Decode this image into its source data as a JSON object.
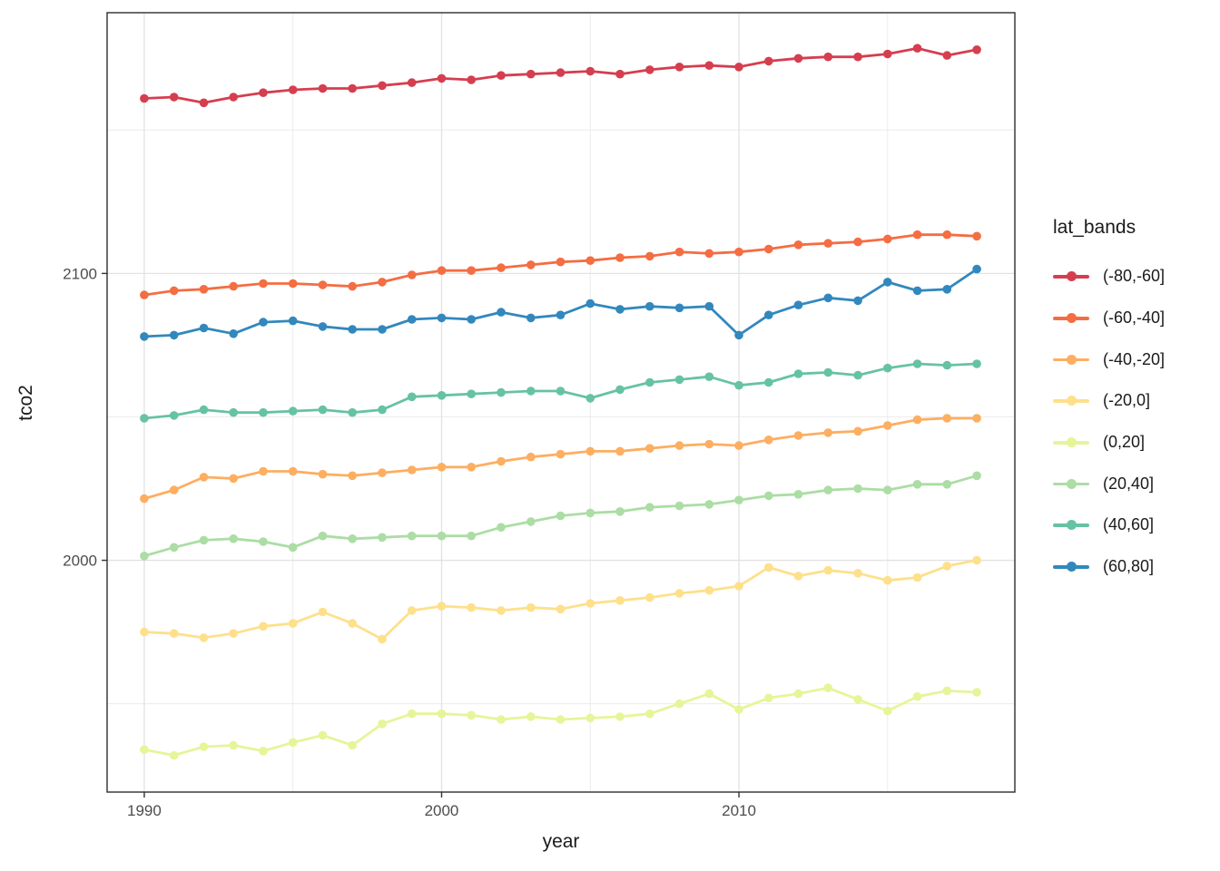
{
  "figure": {
    "background": "#ffffff",
    "panel_background": "#ffffff"
  },
  "colors": {
    "panel_border": "#2e2e2e",
    "grid_major": "#e2e2e2",
    "grid_minor": "#ececec",
    "tick_mark": "#333333",
    "tick_label": "#4d4d4d",
    "title_text": "#1a1a1a"
  },
  "chart_data": {
    "type": "line",
    "title": "",
    "xlabel": "year",
    "ylabel": "tco2",
    "legend_title": "lat_bands",
    "legend_position": "right",
    "grid": "major and minor gridlines, white panel, black border (ggplot theme_bw)",
    "xlim": [
      1988.75,
      2019.28
    ],
    "ylim": [
      1919.2,
      2190.9
    ],
    "x_ticks_major": [
      1990,
      2000,
      2010
    ],
    "x_ticks_minor": [
      1995,
      2005,
      2015
    ],
    "y_ticks_major": [
      2000,
      2100
    ],
    "y_ticks_minor": [
      1950,
      2050,
      2150
    ],
    "x_tick_labels": [
      "1990",
      "2000",
      "2010"
    ],
    "y_tick_labels": [
      "2000",
      "2100"
    ],
    "x": [
      1990,
      1991,
      1992,
      1993,
      1994,
      1995,
      1996,
      1997,
      1998,
      1999,
      2000,
      2001,
      2002,
      2003,
      2004,
      2005,
      2006,
      2007,
      2008,
      2009,
      2010,
      2011,
      2012,
      2013,
      2014,
      2015,
      2016,
      2017,
      2018
    ],
    "series": [
      {
        "name": "(-80,-60]",
        "color": "#D53E4F",
        "values": [
          2161,
          2161.5,
          2159.5,
          2161.5,
          2163,
          2164,
          2164.5,
          2164.5,
          2165.5,
          2166.5,
          2168,
          2167.5,
          2169,
          2169.5,
          2170,
          2170.5,
          2169.5,
          2171,
          2172,
          2172.5,
          2172,
          2174,
          2175,
          2175.5,
          2175.5,
          2176.5,
          2178.5,
          2176,
          2178
        ]
      },
      {
        "name": "(-60,-40]",
        "color": "#F46D43",
        "values": [
          2092.5,
          2094,
          2094.5,
          2095.5,
          2096.5,
          2096.5,
          2096,
          2095.5,
          2097,
          2099.5,
          2101,
          2101,
          2102,
          2103,
          2104,
          2104.5,
          2105.5,
          2106,
          2107.5,
          2107,
          2107.5,
          2108.5,
          2110,
          2110.5,
          2111,
          2112,
          2113.5,
          2113.5,
          2113
        ]
      },
      {
        "name": "(-40,-20]",
        "color": "#FDAE61",
        "values": [
          2021.5,
          2024.5,
          2029,
          2028.5,
          2031,
          2031,
          2030,
          2029.5,
          2030.5,
          2031.5,
          2032.5,
          2032.5,
          2034.5,
          2036,
          2037,
          2038,
          2038,
          2039,
          2040,
          2040.5,
          2040,
          2042,
          2043.5,
          2044.5,
          2045,
          2047,
          2049,
          2049.5,
          2049.5
        ]
      },
      {
        "name": "(-20,0]",
        "color": "#FEE08B",
        "values": [
          1975,
          1974.5,
          1973,
          1974.5,
          1977,
          1978,
          1982,
          1978,
          1972.5,
          1982.5,
          1984,
          1983.5,
          1982.5,
          1983.5,
          1983,
          1985,
          1986,
          1987,
          1988.5,
          1989.5,
          1991,
          1997.5,
          1994.5,
          1996.5,
          1995.5,
          1993,
          1994,
          1998,
          2000
        ]
      },
      {
        "name": "(0,20]",
        "color": "#E6F598",
        "values": [
          1934,
          1932,
          1935,
          1935.5,
          1933.5,
          1936.5,
          1939,
          1935.5,
          1943,
          1946.5,
          1946.5,
          1946,
          1944.5,
          1945.5,
          1944.5,
          1945,
          1945.5,
          1946.5,
          1950,
          1953.5,
          1948,
          1952,
          1953.5,
          1955.5,
          1951.5,
          1947.5,
          1952.5,
          1954.5,
          1954
        ]
      },
      {
        "name": "(20,40]",
        "color": "#ABDDA4",
        "values": [
          2001.5,
          2004.5,
          2007,
          2007.5,
          2006.5,
          2004.5,
          2008.5,
          2007.5,
          2008,
          2008.5,
          2008.5,
          2008.5,
          2011.5,
          2013.5,
          2015.5,
          2016.5,
          2017,
          2018.5,
          2019,
          2019.5,
          2021,
          2022.5,
          2023,
          2024.5,
          2025,
          2024.5,
          2026.5,
          2026.5,
          2029.5
        ]
      },
      {
        "name": "(40,60]",
        "color": "#66C2A5",
        "values": [
          2049.5,
          2050.5,
          2052.5,
          2051.5,
          2051.5,
          2052,
          2052.5,
          2051.5,
          2052.5,
          2057,
          2057.5,
          2058,
          2058.5,
          2059,
          2059,
          2056.5,
          2059.5,
          2062,
          2063,
          2064,
          2061,
          2062,
          2065,
          2065.5,
          2064.5,
          2067,
          2068.5,
          2068,
          2068.5
        ]
      },
      {
        "name": "(60,80]",
        "color": "#3288BD",
        "values": [
          2078,
          2078.5,
          2081,
          2079,
          2083,
          2083.5,
          2081.5,
          2080.5,
          2080.5,
          2084,
          2084.5,
          2084,
          2086.5,
          2084.5,
          2085.5,
          2089.5,
          2087.5,
          2088.5,
          2088,
          2088.5,
          2078.5,
          2085.5,
          2089,
          2091.5,
          2090.5,
          2097,
          2094,
          2094.5,
          2101.5
        ]
      }
    ]
  }
}
